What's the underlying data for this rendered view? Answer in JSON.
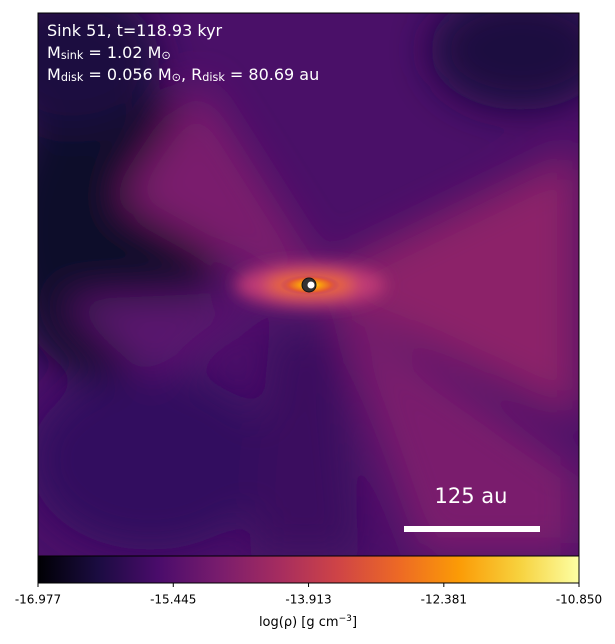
{
  "chart_data": {
    "type": "image",
    "annotation_lines": [
      [
        {
          "t": "Sink 51, t=118.93 kyr"
        }
      ],
      [
        {
          "t": "M"
        },
        {
          "sub": "sink"
        },
        {
          "t": " = 1.02 M"
        },
        {
          "sub": "⊙"
        }
      ],
      [
        {
          "t": "M"
        },
        {
          "sub": "disk"
        },
        {
          "t": " = 0.056 M"
        },
        {
          "sub": "⊙"
        },
        {
          "t": ", R"
        },
        {
          "sub": "disk"
        },
        {
          "t": " = 80.69 au"
        }
      ]
    ],
    "scale_bar_label": "125 au",
    "colorbar": {
      "colormap": "inferno",
      "lim": [
        -16.977,
        -10.85
      ],
      "ticks": [
        -16.977,
        -15.445,
        -13.913,
        -12.381,
        {
          "value": -10.85,
          "label": "-10.850"
        }
      ],
      "label": [
        {
          "t": "log(ρ) [g cm"
        },
        {
          "sup": "−3"
        },
        {
          "t": "]"
        }
      ]
    }
  }
}
